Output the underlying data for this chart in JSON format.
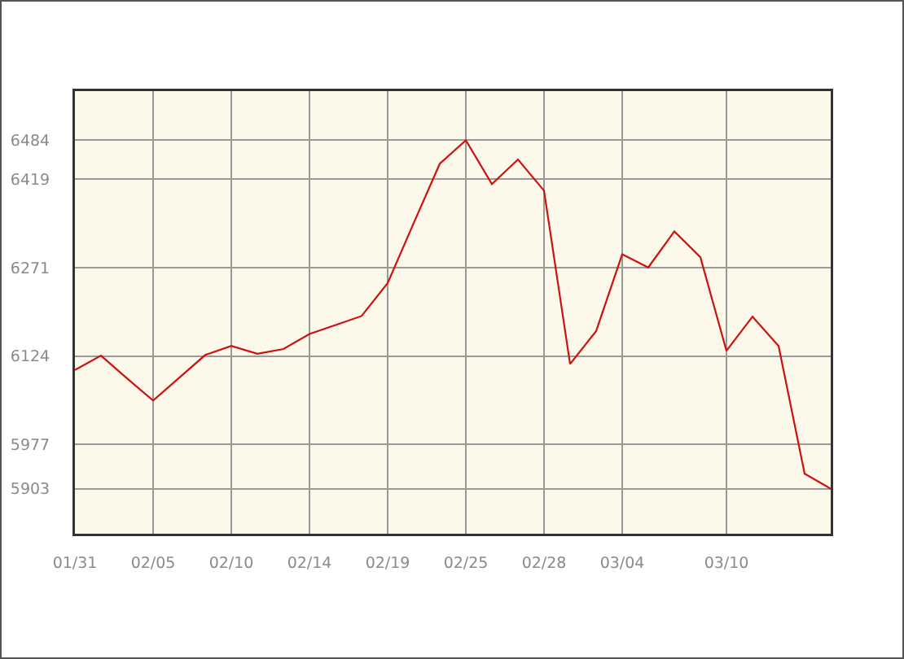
{
  "chart_data": {
    "type": "line",
    "color": "#cc1111",
    "categories": [
      "01/31",
      null,
      null,
      "02/05",
      null,
      null,
      "02/10",
      null,
      null,
      "02/14",
      null,
      null,
      "02/19",
      null,
      null,
      "02/25",
      null,
      null,
      "02/28",
      null,
      null,
      "03/04",
      null,
      null,
      null,
      "03/10",
      null,
      null,
      null,
      null
    ],
    "values": [
      6101,
      6125,
      6087,
      6050,
      6088,
      6126,
      6141,
      6128,
      6136,
      6161,
      6176,
      6191,
      6246,
      6346,
      6445,
      6484,
      6411,
      6452,
      6400,
      6111,
      6166,
      6294,
      6272,
      6332,
      6289,
      6133,
      6190,
      6141,
      5928,
      5903
    ],
    "ylim": [
      5828,
      6566
    ],
    "yticks": [
      5903,
      5977,
      6124,
      6271,
      6419,
      6484
    ],
    "grid": true
  }
}
